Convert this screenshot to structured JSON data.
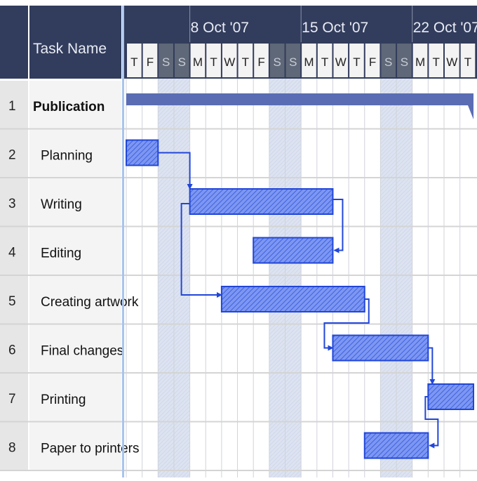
{
  "header": {
    "task_name_label": "Task Name",
    "week_labels": [
      "8 Oct '07",
      "15 Oct '07",
      "22 Oct '07"
    ],
    "days": [
      "T",
      "F",
      "S",
      "S",
      "M",
      "T",
      "W",
      "T",
      "F",
      "S",
      "S",
      "M",
      "T",
      "W",
      "T",
      "F",
      "S",
      "S",
      "M",
      "T",
      "W",
      "T"
    ]
  },
  "colors": {
    "header_bg": "#323c5c",
    "weekend_header": "#5f6878",
    "bar_fill": "#5f80ee",
    "bar_stroke": "#2146d8",
    "summary_bar": "#5a6db4",
    "link": "#2146d8"
  },
  "chart_data": {
    "type": "gantt",
    "timeline_start": "2007-10-04",
    "tasks": [
      {
        "id": 1,
        "name": "Publication",
        "summary": true,
        "start": "2007-10-04",
        "end": "2007-10-25"
      },
      {
        "id": 2,
        "name": "Planning",
        "start": "2007-10-04",
        "end": "2007-10-05"
      },
      {
        "id": 3,
        "name": "Writing",
        "start": "2007-10-08",
        "end": "2007-10-16"
      },
      {
        "id": 4,
        "name": "Editing",
        "start": "2007-10-12",
        "end": "2007-10-16"
      },
      {
        "id": 5,
        "name": "Creating artwork",
        "start": "2007-10-10",
        "end": "2007-10-18"
      },
      {
        "id": 6,
        "name": "Final changes",
        "start": "2007-10-17",
        "end": "2007-10-22"
      },
      {
        "id": 7,
        "name": "Printing",
        "start": "2007-10-23",
        "end": "2007-10-25"
      },
      {
        "id": 8,
        "name": "Paper to printers",
        "start": "2007-10-19",
        "end": "2007-10-22"
      }
    ],
    "links": [
      {
        "from": 2,
        "to": 3,
        "type": "FS"
      },
      {
        "from": 3,
        "to": 4,
        "type": "FF"
      },
      {
        "from": 3,
        "to": 5,
        "type": "SS"
      },
      {
        "from": 5,
        "to": 6,
        "type": "FS"
      },
      {
        "from": 6,
        "to": 7,
        "type": "FS"
      },
      {
        "from": 7,
        "to": 8,
        "type": "SF"
      }
    ]
  }
}
